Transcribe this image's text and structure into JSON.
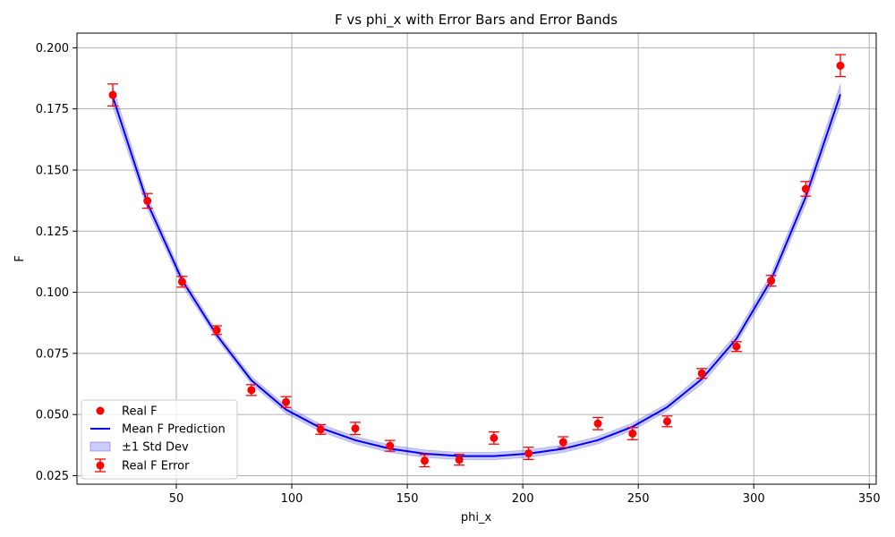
{
  "chart_data": {
    "type": "scatter",
    "title": "F vs phi_x with Error Bars and Error Bands",
    "xlabel": "phi_x",
    "ylabel": "F",
    "xlim": [
      7,
      353
    ],
    "ylim": [
      0.0215,
      0.206
    ],
    "xticks": [
      50,
      100,
      150,
      200,
      250,
      300,
      350
    ],
    "yticks": [
      0.025,
      0.05,
      0.075,
      0.1,
      0.125,
      0.15,
      0.175,
      0.2
    ],
    "xtick_labels": [
      "50",
      "100",
      "150",
      "200",
      "250",
      "300",
      "350"
    ],
    "ytick_labels": [
      "0.025",
      "0.050",
      "0.075",
      "0.100",
      "0.125",
      "0.150",
      "0.175",
      "0.200"
    ],
    "grid": true,
    "legend_position": "lower-left",
    "x": [
      22.5,
      37.5,
      52.5,
      67.5,
      82.5,
      97.5,
      112.5,
      127.5,
      142.5,
      157.5,
      172.5,
      187.5,
      202.5,
      217.5,
      232.5,
      247.5,
      262.5,
      277.5,
      292.5,
      307.5,
      322.5,
      337.5
    ],
    "series": [
      {
        "name": "Real F",
        "kind": "scatter",
        "color": "#ff0000",
        "values": [
          0.1807,
          0.1374,
          0.1043,
          0.0845,
          0.06,
          0.0551,
          0.0439,
          0.0443,
          0.0372,
          0.0311,
          0.0315,
          0.0404,
          0.0341,
          0.0387,
          0.0463,
          0.0422,
          0.0472,
          0.0668,
          0.0778,
          0.1047,
          0.1423,
          0.1927
        ]
      },
      {
        "name": "Real F Error",
        "kind": "errorbar",
        "color": "#ff0000",
        "errors": [
          0.0045,
          0.003,
          0.0022,
          0.0018,
          0.0022,
          0.0022,
          0.002,
          0.0025,
          0.0022,
          0.0025,
          0.0022,
          0.0025,
          0.0025,
          0.0022,
          0.0025,
          0.0025,
          0.0022,
          0.002,
          0.002,
          0.0022,
          0.003,
          0.0045
        ]
      },
      {
        "name": "Mean F Prediction",
        "kind": "line",
        "color": "#0000ff",
        "values": [
          0.18,
          0.1365,
          0.105,
          0.0825,
          0.064,
          0.052,
          0.0445,
          0.0395,
          0.036,
          0.034,
          0.033,
          0.033,
          0.034,
          0.036,
          0.0395,
          0.045,
          0.053,
          0.0645,
          0.081,
          0.105,
          0.139,
          0.181
        ]
      },
      {
        "name": "±1 Std Dev",
        "kind": "band",
        "color": "#0000ff",
        "std": [
          0.004,
          0.0025,
          0.002,
          0.0015,
          0.0015,
          0.0015,
          0.0015,
          0.0015,
          0.0015,
          0.0015,
          0.0015,
          0.0015,
          0.0015,
          0.0015,
          0.0015,
          0.0015,
          0.0015,
          0.002,
          0.002,
          0.0025,
          0.003,
          0.004
        ]
      }
    ]
  }
}
